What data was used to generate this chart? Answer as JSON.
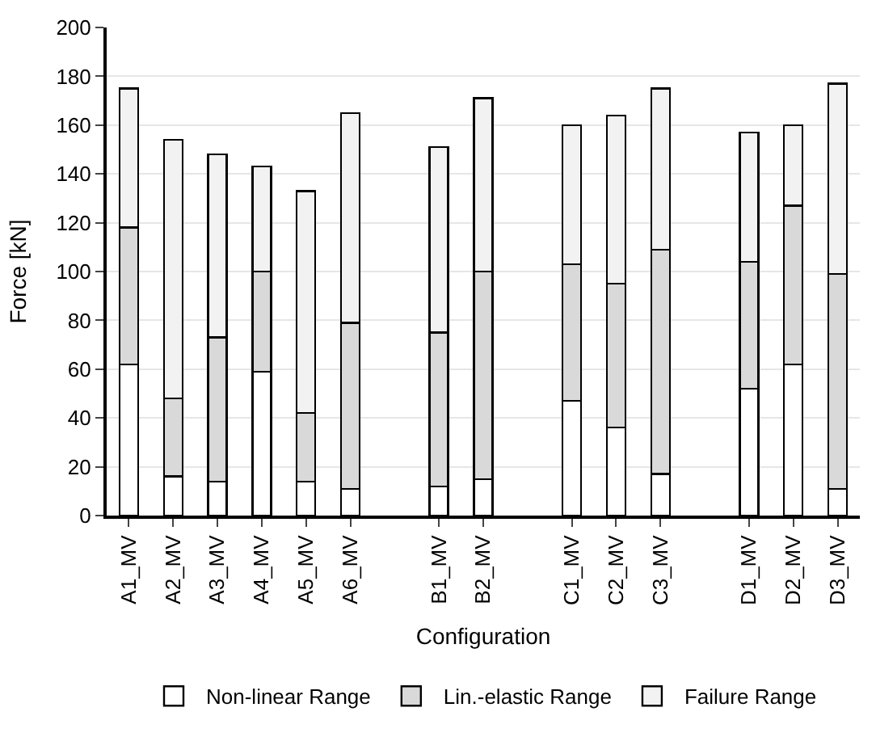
{
  "chart_data": {
    "type": "bar",
    "stacked": true,
    "xlabel": "Configuration",
    "ylabel": "Force [kN]",
    "categories": [
      "A1_MV",
      "A2_MV",
      "A3_MV",
      "A4_MV",
      "A5_MV",
      "A6_MV",
      null,
      "B1_MV",
      "B2_MV",
      null,
      "C1_MV",
      "C2_MV",
      "C3_MV",
      null,
      "D1_MV",
      "D2_MV",
      "D3_MV"
    ],
    "series": [
      {
        "name": "Non-linear Range",
        "color": "#ffffff",
        "values": [
          62,
          16,
          14,
          59,
          14,
          11,
          null,
          12,
          15,
          null,
          47,
          36,
          17,
          null,
          52,
          62,
          11
        ]
      },
      {
        "name": "Lin.-elastic Range",
        "color": "#d9d9d9",
        "values": [
          56,
          32,
          59,
          41,
          28,
          68,
          null,
          63,
          85,
          null,
          56,
          59,
          92,
          null,
          52,
          65,
          88
        ]
      },
      {
        "name": "Failure Range",
        "color": "#f2f2f2",
        "values": [
          57,
          106,
          75,
          43,
          91,
          86,
          null,
          76,
          71,
          null,
          57,
          69,
          66,
          null,
          53,
          33,
          78
        ]
      }
    ],
    "ylim": [
      0,
      200
    ],
    "yticks": [
      0,
      20,
      40,
      60,
      80,
      100,
      120,
      140,
      160,
      180,
      200
    ],
    "grid": "y",
    "legend": "bottom"
  }
}
